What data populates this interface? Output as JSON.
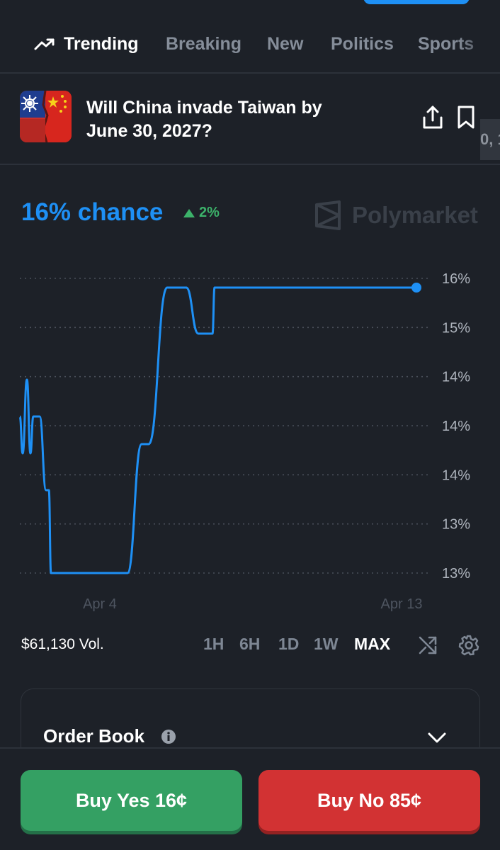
{
  "nav": {
    "tabs": [
      {
        "label": "Trending",
        "active": true
      },
      {
        "label": "Breaking"
      },
      {
        "label": "New"
      },
      {
        "label": "Politics"
      },
      {
        "label": "Sports"
      }
    ]
  },
  "market": {
    "title": "Will China invade Taiwan by June 30, 2027?",
    "edge_text": "0, 1",
    "chance": "16% chance",
    "change": "2%",
    "brand": "Polymarket",
    "volume": "$61,130 Vol."
  },
  "ranges": [
    "1H",
    "6H",
    "1D",
    "1W",
    "MAX"
  ],
  "order_book": {
    "label": "Order Book"
  },
  "actions": {
    "buy_yes": "Buy Yes 16¢",
    "buy_no": "Buy No 85¢"
  },
  "colors": {
    "accent": "#1e90f5",
    "up": "#3cb26a",
    "yes": "#34a063",
    "no": "#d23233"
  },
  "chart_data": {
    "type": "line",
    "y_tick_labels": [
      "16%",
      "15%",
      "14%",
      "14%",
      "14%",
      "13%",
      "13%"
    ],
    "x_tick_labels": [
      "Apr 4",
      "Apr 13"
    ],
    "grid": true,
    "ylim": [
      12.9,
      16.1
    ],
    "series": [
      {
        "values": [
          14.6,
          14.2,
          15.0,
          14.2,
          14.6,
          14.6,
          13.8,
          13.8,
          12.9,
          12.9,
          14.3,
          14.3,
          16.0,
          16.0,
          15.5,
          15.5,
          16.0,
          16.0
        ]
      }
    ]
  }
}
